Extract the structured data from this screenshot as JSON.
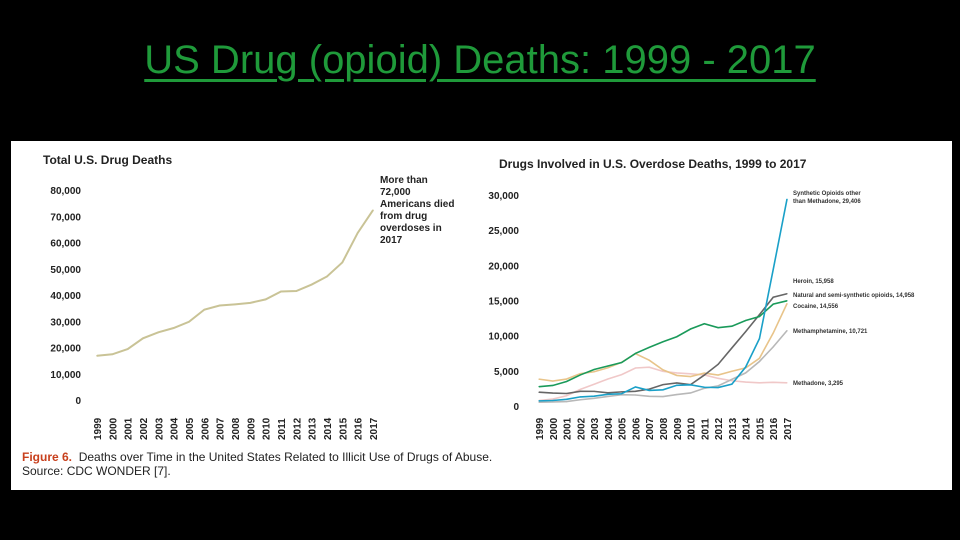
{
  "slide": {
    "title": "US Drug (opioid) Deaths: 1999 - 2017"
  },
  "caption": {
    "figure_label": "Figure 6.",
    "figure_text": "Deaths over Time in the United States Related to Illicit Use of Drugs of Abuse.",
    "source": "Source: CDC WONDER [7]."
  },
  "colors": {
    "title": "#1f9a3a",
    "total_line": "#c9c396",
    "synthetic": "#1aa0c8",
    "heroin": "#666666",
    "natural": "#1a9a5a",
    "cocaine": "#e8c48a",
    "meth": "#b8b8b8",
    "methadone": "#f0c8c8"
  },
  "chart_data": [
    {
      "type": "line",
      "title": "Total U.S. Drug Deaths",
      "x": [
        "1999",
        "2000",
        "2001",
        "2002",
        "2003",
        "2004",
        "2005",
        "2006",
        "2007",
        "2008",
        "2009",
        "2010",
        "2011",
        "2012",
        "2013",
        "2014",
        "2015",
        "2016",
        "2017"
      ],
      "yticks": [
        "0",
        "10,000",
        "20,000",
        "30,000",
        "40,000",
        "50,000",
        "60,000",
        "70,000",
        "80,000"
      ],
      "ylim": [
        0,
        80000
      ],
      "series": [
        {
          "values": [
            16849,
            17415,
            19394,
            23518,
            25785,
            27424,
            29813,
            34425,
            36010,
            36450,
            37004,
            38329,
            41340,
            41502,
            43982,
            47055,
            52404,
            63632,
            72287
          ]
        }
      ],
      "annotation": [
        "More than",
        "72,000",
        "Americans died",
        "from drug",
        "overdoses in",
        "2017"
      ]
    },
    {
      "type": "line",
      "title": "Drugs Involved in U.S. Overdose Deaths, 1999 to 2017",
      "x": [
        "1999",
        "2000",
        "2001",
        "2002",
        "2003",
        "2004",
        "2005",
        "2006",
        "2007",
        "2008",
        "2009",
        "2010",
        "2011",
        "2012",
        "2013",
        "2014",
        "2015",
        "2016",
        "2017"
      ],
      "yticks": [
        "0",
        "5,000",
        "10,000",
        "15,000",
        "20,000",
        "25,000",
        "30,000"
      ],
      "ylim": [
        0,
        30000
      ],
      "series": [
        {
          "label_lines": [
            "Synthetic Opioids other",
            "than Methadone, 29,406"
          ],
          "color_key": "synthetic",
          "values": [
            730,
            782,
            957,
            1295,
            1400,
            1664,
            1742,
            2707,
            2213,
            2306,
            2946,
            3007,
            2666,
            2628,
            3105,
            5544,
            9580,
            19413,
            29406
          ]
        },
        {
          "label_lines": [
            "Heroin, 15,958"
          ],
          "color_key": "heroin",
          "values": [
            1960,
            1842,
            1779,
            2089,
            2080,
            1878,
            2009,
            2088,
            2399,
            3041,
            3278,
            3036,
            4397,
            5925,
            8257,
            10574,
            12989,
            15469,
            15958
          ]
        },
        {
          "label_lines": [
            "Natural and semi-synthetic opioids, 14,958"
          ],
          "color_key": "natural",
          "values": [
            2749,
            2917,
            3479,
            4416,
            5188,
            5686,
            6185,
            7477,
            8338,
            9142,
            9848,
            10943,
            11693,
            11140,
            11346,
            12159,
            12727,
            14487,
            14958
          ]
        },
        {
          "label_lines": [
            "Cocaine, 14,556"
          ],
          "color_key": "cocaine",
          "values": [
            3822,
            3544,
            3833,
            4599,
            4867,
            5443,
            6208,
            7448,
            6512,
            5129,
            4350,
            4183,
            4681,
            4404,
            4944,
            5415,
            6784,
            10375,
            14556
          ]
        },
        {
          "label_lines": [
            "Methamphetamine, 10,721"
          ],
          "color_key": "meth",
          "values": [
            547,
            578,
            627,
            891,
            1088,
            1362,
            1614,
            1564,
            1372,
            1341,
            1632,
            1854,
            2519,
            2863,
            3781,
            4706,
            6330,
            8407,
            10721
          ]
        },
        {
          "label_lines": [
            "Methadone, 3,295"
          ],
          "color_key": "methadone",
          "values": [
            784,
            986,
            1456,
            2358,
            3095,
            3845,
            4460,
            5406,
            5518,
            4924,
            4696,
            4577,
            4418,
            3932,
            3591,
            3400,
            3301,
            3373,
            3295
          ]
        }
      ]
    }
  ]
}
